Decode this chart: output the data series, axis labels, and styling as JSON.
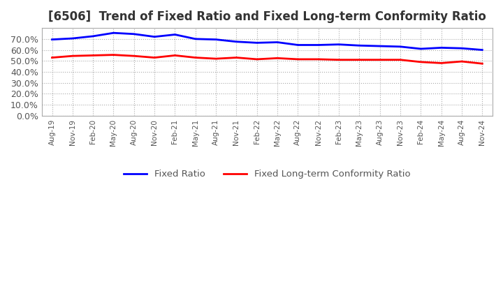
{
  "title": "[6506]  Trend of Fixed Ratio and Fixed Long-term Conformity Ratio",
  "x_labels": [
    "Aug-19",
    "Nov-19",
    "Feb-20",
    "May-20",
    "Aug-20",
    "Nov-20",
    "Feb-21",
    "May-21",
    "Aug-21",
    "Nov-21",
    "Feb-22",
    "May-22",
    "Aug-22",
    "Nov-22",
    "Feb-23",
    "May-23",
    "Aug-23",
    "Nov-23",
    "Feb-24",
    "May-24",
    "Aug-24",
    "Nov-24"
  ],
  "fixed_ratio": [
    69.5,
    70.5,
    72.5,
    75.5,
    74.5,
    72.0,
    74.0,
    70.0,
    69.5,
    67.5,
    66.5,
    67.0,
    64.5,
    64.5,
    65.0,
    64.0,
    63.5,
    63.0,
    61.0,
    62.0,
    61.5,
    60.0
  ],
  "fixed_lterm": [
    53.0,
    54.5,
    55.0,
    55.5,
    54.5,
    53.0,
    55.0,
    53.0,
    52.0,
    53.0,
    51.5,
    52.5,
    51.5,
    51.5,
    51.0,
    51.0,
    51.0,
    51.0,
    49.0,
    48.0,
    49.5,
    47.5
  ],
  "fixed_ratio_color": "#0000ff",
  "fixed_lterm_color": "#ff0000",
  "ylim": [
    0,
    80
  ],
  "yticks": [
    0,
    10,
    20,
    30,
    40,
    50,
    60,
    70
  ],
  "background_color": "#ffffff",
  "grid_color": "#aaaaaa",
  "title_fontsize": 12,
  "legend_labels": [
    "Fixed Ratio",
    "Fixed Long-term Conformity Ratio"
  ]
}
